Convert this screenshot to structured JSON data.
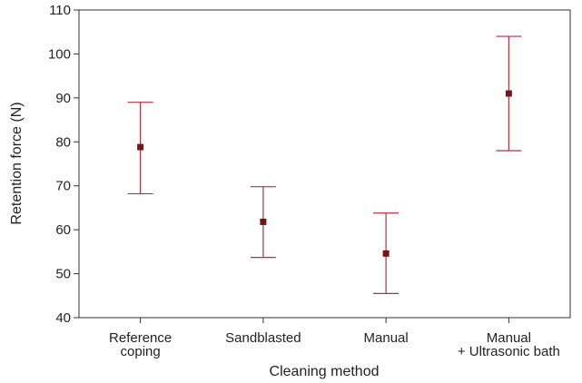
{
  "chart_data": {
    "type": "scatter",
    "xlabel": "Cleaning method",
    "ylabel": "Retention force (N)",
    "ylim": [
      40,
      110
    ],
    "yticks": [
      40,
      50,
      60,
      70,
      80,
      90,
      100,
      110
    ],
    "grid": false,
    "categories": [
      [
        "Reference",
        "coping"
      ],
      [
        "Sandblasted"
      ],
      [
        "Manual"
      ],
      [
        "Manual",
        "+ Ultrasonic bath"
      ]
    ],
    "series": [
      {
        "mean": [
          78.8,
          61.8,
          54.6,
          91.0
        ],
        "lower": [
          68.2,
          53.7,
          45.5,
          78.0
        ],
        "upper": [
          89.0,
          69.8,
          63.8,
          104.0
        ]
      }
    ],
    "colors": {
      "error_bar": "#b3313a",
      "point": "#7a1316",
      "axis": "#333333"
    }
  }
}
